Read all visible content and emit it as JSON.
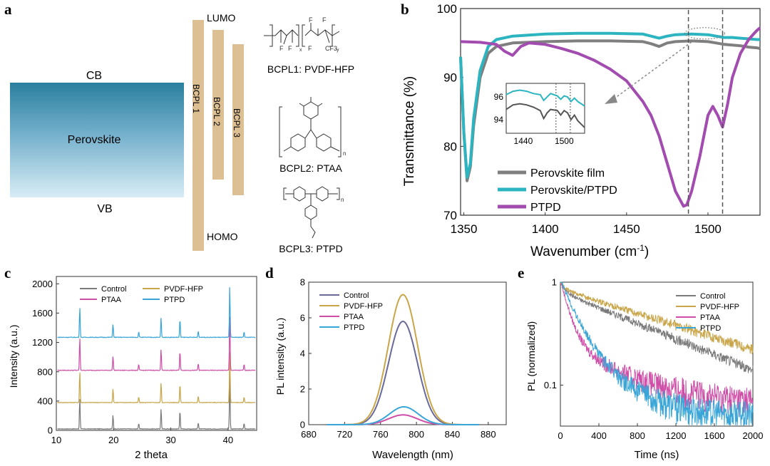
{
  "panel_labels": [
    "a",
    "b",
    "c",
    "d",
    "e"
  ],
  "chart_data": [
    {
      "panel": "a",
      "type": "diagram",
      "energy": {
        "cb": "CB",
        "vb": "VB",
        "perovskite": "Perovskite",
        "lumo": "LUMO",
        "homo": "HOMO",
        "bars": [
          "BCPL 1",
          "BCPL 2",
          "BCPL 3"
        ]
      },
      "structures": [
        {
          "label": "BCPL1: PVDF-HFP",
          "atoms": [
            "F",
            "F",
            "F",
            "F",
            "F",
            "CF3",
            "x",
            "y"
          ]
        },
        {
          "label": "BCPL2: PTAA",
          "atoms": [
            "n"
          ]
        },
        {
          "label": "BCPL3: PTPD",
          "atoms": [
            "n"
          ]
        }
      ]
    },
    {
      "panel": "b",
      "type": "line",
      "xlabel": "Wavenumber (cm",
      "xlabel_sup": "-1",
      "xlabel_end": ")",
      "ylabel": "Transmittance (%)",
      "xlim": [
        1348,
        1532
      ],
      "ylim": [
        70,
        100
      ],
      "xticks": [
        1350,
        1400,
        1450,
        1500
      ],
      "yticks": [
        70,
        80,
        90,
        100
      ],
      "dashed_lines": [
        1488,
        1509
      ],
      "series": [
        {
          "name": "Perovskite film",
          "color": "#7f7f7f",
          "x": [
            1348,
            1350,
            1352,
            1354,
            1356,
            1360,
            1365,
            1370,
            1380,
            1400,
            1420,
            1440,
            1460,
            1465,
            1470,
            1475,
            1480,
            1490,
            1500,
            1505,
            1510,
            1515,
            1520,
            1525,
            1530,
            1532
          ],
          "y": [
            93,
            82,
            75,
            77,
            83,
            90,
            93.5,
            94.5,
            95,
            95.2,
            95.3,
            95.3,
            95.2,
            94.9,
            94.5,
            95,
            95.2,
            95.3,
            95.2,
            95,
            94.8,
            94.7,
            94.6,
            94.4,
            94.3,
            94.2
          ]
        },
        {
          "name": "Perovskite/PTPD",
          "color": "#2cb5c0",
          "x": [
            1348,
            1350,
            1352,
            1354,
            1356,
            1360,
            1365,
            1370,
            1380,
            1400,
            1420,
            1440,
            1460,
            1465,
            1470,
            1475,
            1480,
            1490,
            1500,
            1505,
            1510,
            1515,
            1520,
            1525,
            1530,
            1532
          ],
          "y": [
            93,
            82,
            75.5,
            77.5,
            84,
            91,
            94.5,
            95.5,
            96,
            96.3,
            96.4,
            96.4,
            96.3,
            96,
            95.7,
            96,
            96.2,
            96.3,
            96.2,
            96,
            95.8,
            95.8,
            95.7,
            95.6,
            95.5,
            95.5
          ]
        },
        {
          "name": "PTPD",
          "color": "#a24cb0",
          "x": [
            1348,
            1360,
            1370,
            1375,
            1380,
            1385,
            1390,
            1400,
            1410,
            1420,
            1430,
            1440,
            1450,
            1460,
            1465,
            1470,
            1475,
            1480,
            1485,
            1487,
            1490,
            1495,
            1500,
            1503,
            1506,
            1509,
            1512,
            1515,
            1520,
            1525,
            1530,
            1532
          ],
          "y": [
            95.2,
            95.1,
            94.8,
            93.8,
            93.2,
            94.5,
            95,
            94.8,
            94.2,
            93.5,
            92.5,
            91.2,
            89.5,
            86.5,
            84.5,
            81.5,
            77.5,
            73.5,
            71.3,
            71.5,
            73.5,
            78.5,
            84.5,
            85.8,
            84.5,
            82.8,
            86,
            90,
            93.5,
            95.5,
            96.8,
            97.2
          ]
        }
      ],
      "inset": {
        "xticks": [
          1440,
          1500
        ],
        "yticks": [
          94,
          96
        ],
        "xlim": [
          1415,
          1530
        ],
        "ylim": [
          92.8,
          97.2
        ],
        "dashed_lines": [
          1488,
          1509
        ],
        "series": [
          {
            "name": "Perovskite/PTPD",
            "color": "#2cb5c0",
            "x": [
              1415,
              1425,
              1435,
              1445,
              1455,
              1465,
              1470,
              1475,
              1480,
              1490,
              1495,
              1500,
              1505,
              1510,
              1515,
              1520,
              1525,
              1530
            ],
            "y": [
              96.2,
              96.5,
              96.6,
              96.5,
              96.3,
              96.2,
              95.7,
              96,
              96.3,
              96.1,
              95.8,
              96.1,
              96,
              95.6,
              95.9,
              95.6,
              95.4,
              95.2
            ]
          },
          {
            "name": "Perovskite film",
            "color": "#555555",
            "x": [
              1415,
              1425,
              1435,
              1445,
              1455,
              1465,
              1470,
              1475,
              1480,
              1490,
              1495,
              1500,
              1505,
              1510,
              1515,
              1520,
              1525,
              1530
            ],
            "y": [
              94.9,
              95.3,
              95.4,
              95.3,
              95.1,
              94.8,
              94.1,
              94.6,
              94.9,
              94.8,
              94.4,
              94.8,
              94.6,
              94,
              94.4,
              93.9,
              93.6,
              93.3
            ]
          }
        ]
      }
    },
    {
      "panel": "c",
      "type": "line",
      "xlabel": "2 theta",
      "ylabel": "Intensity (a.u.)",
      "xlim": [
        10,
        45
      ],
      "ylim": [
        0,
        2100
      ],
      "xticks": [
        10,
        20,
        30,
        40
      ],
      "yticks": [
        0,
        400,
        800,
        1200,
        1600,
        2000
      ],
      "legend_position": "top",
      "peaks": [
        {
          "pos": 14.1,
          "height": 430
        },
        {
          "pos": 19.9,
          "height": 190
        },
        {
          "pos": 24.4,
          "height": 80
        },
        {
          "pos": 28.3,
          "height": 280
        },
        {
          "pos": 31.6,
          "height": 260
        },
        {
          "pos": 34.8,
          "height": 90
        },
        {
          "pos": 40.3,
          "height": 730
        },
        {
          "pos": 42.8,
          "height": 80
        }
      ],
      "series": [
        {
          "name": "Control",
          "color": "#7a7a7a",
          "offset": 20,
          "scale": 1.0
        },
        {
          "name": "PVDF-HFP",
          "color": "#c9a64a",
          "offset": 380,
          "scale": 1.0
        },
        {
          "name": "PTAA",
          "color": "#cf4fa8",
          "offset": 820,
          "scale": 1.05
        },
        {
          "name": "PTPD",
          "color": "#3aa6d8",
          "offset": 1270,
          "scale": 0.98
        }
      ]
    },
    {
      "panel": "d",
      "type": "line",
      "xlabel": "Wavelength (nm)",
      "ylabel": "PL intensity (a.u.)",
      "xlim": [
        680,
        900
      ],
      "ylim": [
        0,
        8
      ],
      "xticks": [
        680,
        720,
        760,
        800,
        840,
        880
      ],
      "yticks": [
        0,
        2,
        4,
        6,
        8
      ],
      "legend_position": "top-left",
      "series": [
        {
          "name": "Control",
          "color": "#6a6a9a",
          "center": 785,
          "peak": 5.8,
          "width": 18
        },
        {
          "name": "PVDF-HFP",
          "color": "#c9a64a",
          "center": 785,
          "peak": 7.3,
          "width": 18.5
        },
        {
          "name": "PTAA",
          "color": "#cf4fa8",
          "center": 785,
          "peak": 0.55,
          "width": 18
        },
        {
          "name": "PTPD",
          "color": "#3aa6d8",
          "center": 786,
          "peak": 1.0,
          "width": 18
        }
      ]
    },
    {
      "panel": "e",
      "type": "line",
      "xlabel": "Time (ns)",
      "ylabel": "PL (normalized)",
      "xlim": [
        0,
        2000
      ],
      "ylim": [
        0.04,
        1
      ],
      "xticks": [
        0,
        400,
        800,
        1200,
        1600,
        2000
      ],
      "yticks": [
        0.1,
        1
      ],
      "ytick_labels": [
        "0.1",
        "1"
      ],
      "yscale": "log",
      "legend_position": "top-right",
      "series": [
        {
          "name": "Control",
          "color": "#7a7a7a",
          "a1": 0.2,
          "t1": 60,
          "a2": 0.8,
          "t2": 1150,
          "floor": 0.0
        },
        {
          "name": "PVDF-HFP",
          "color": "#c9a64a",
          "a1": 0.15,
          "t1": 60,
          "a2": 0.85,
          "t2": 1500,
          "floor": 0.0
        },
        {
          "name": "PTAA",
          "color": "#cf4fa8",
          "a1": 0.8,
          "t1": 90,
          "a2": 0.2,
          "t2": 600,
          "floor": 0.065
        },
        {
          "name": "PTPD",
          "color": "#3aa6d8",
          "a1": 0.7,
          "t1": 150,
          "a2": 0.3,
          "t2": 380,
          "floor": 0.05
        }
      ]
    }
  ]
}
